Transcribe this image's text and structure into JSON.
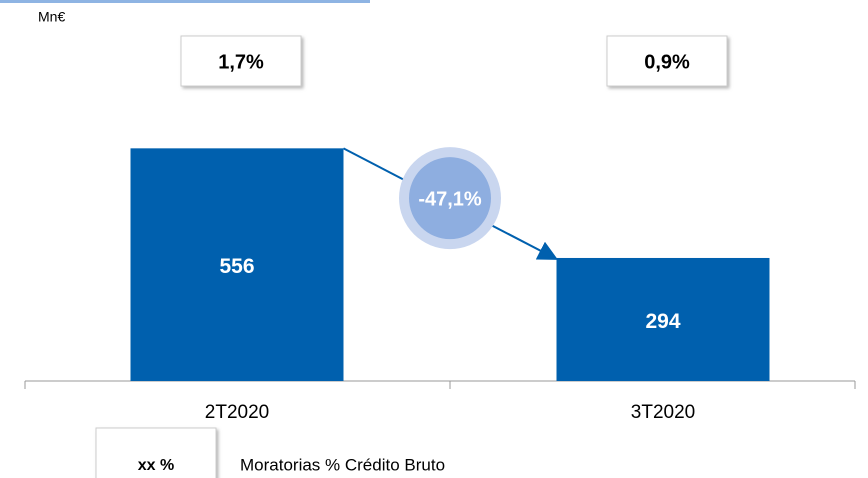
{
  "chart_data": {
    "type": "bar",
    "unit": "Mn€",
    "categories": [
      "2T2020",
      "3T2020"
    ],
    "values": [
      556,
      294
    ],
    "color": "#0060ae",
    "ylim": [
      0,
      650
    ],
    "ratio": {
      "values": [
        1.7,
        0.9
      ],
      "value_labels": [
        "1,7%",
        "0,9%"
      ]
    },
    "change": {
      "value": -47.1,
      "label": "-47,1%"
    },
    "legend": {
      "sample": "xx %",
      "label": "Moratorias % Crédito Bruto"
    }
  }
}
